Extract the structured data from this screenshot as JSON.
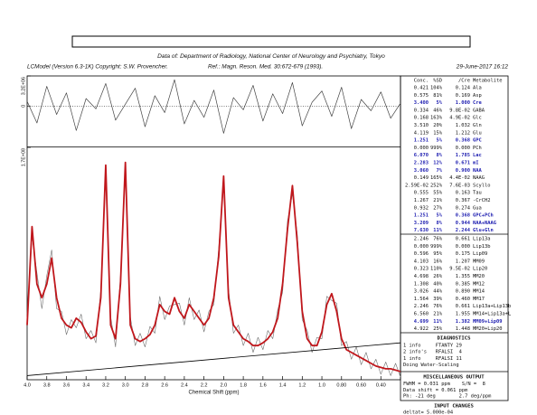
{
  "header": {
    "data_of": "Data of: Department of Radiology, National Center of Neurology and Psychiatry, Tokyo",
    "program": "LCModel (Version 6.3-1K) Copyright: S.W. Provencher.",
    "reference": "Ref.: Magn. Reson. Med. 30:672-679 (1993).",
    "date": "29-June-2017  16:12"
  },
  "chart_data": [
    {
      "type": "line",
      "xlim": [
        4.0,
        0.2
      ],
      "ylim": [
        -4300000.0,
        3200000.0
      ],
      "yticks": [
        {
          "value": 3200000.0,
          "label": "3.2E+06"
        },
        0
      ],
      "series": [
        {
          "name": "Residuals",
          "color": "#444444",
          "x": [
            4,
            3.9,
            3.8,
            3.7,
            3.6,
            3.5,
            3.4,
            3.3,
            3.2,
            3.1,
            3,
            2.9,
            2.8,
            2.7,
            2.6,
            2.5,
            2.4,
            2.3,
            2.2,
            2.1,
            2,
            1.9,
            1.8,
            1.7,
            1.6,
            1.5,
            1.4,
            1.3,
            1.2,
            1.1,
            1,
            0.9,
            0.8,
            0.7,
            0.6,
            0.5,
            0.4,
            0.3,
            0.2
          ],
          "values": [
            500000.0,
            -1800000.0,
            2100000.0,
            -900000.0,
            1400000.0,
            -2600000.0,
            800000.0,
            -300000.0,
            2400000.0,
            -1500000.0,
            200000.0,
            1900000.0,
            -2200000.0,
            1100000.0,
            -700000.0,
            2800000.0,
            -1900000.0,
            600000.0,
            -1200000.0,
            1700000.0,
            -2900000.0,
            900000.0,
            -400000.0,
            2200000.0,
            -1600000.0,
            1300000.0,
            -800000.0,
            2500000.0,
            -2100000.0,
            400000.0,
            1600000.0,
            -1100000.0,
            2000000.0,
            -2400000.0,
            700000.0,
            -500000.0,
            1500000.0,
            -1300000.0,
            300000.0
          ]
        }
      ]
    },
    {
      "type": "line",
      "xlabel": "Chemical Shift (ppm)",
      "xlim": [
        4.0,
        0.2
      ],
      "xticks": [
        {
          "value": 4,
          "label": "4.0"
        },
        3.8,
        3.6,
        3.4,
        3.2,
        {
          "value": 3,
          "label": "3.0"
        },
        2.8,
        2.6,
        2.4,
        2.2,
        {
          "value": 2,
          "label": "2.0"
        },
        1.8,
        1.6,
        1.4,
        1.2,
        {
          "value": 1,
          "label": "1.0"
        },
        {
          "value": 0.8,
          "label": "0.80"
        },
        {
          "value": 0.6,
          "label": "0.60"
        },
        {
          "value": 0.4,
          "label": "0.40"
        }
      ],
      "ylim": [
        0,
        170000000.0
      ],
      "yticks": [
        {
          "value": 170000000.0,
          "label": "1.7E+08"
        }
      ],
      "x": [
        4,
        3.95,
        3.9,
        3.85,
        3.8,
        3.75,
        3.7,
        3.65,
        3.6,
        3.55,
        3.5,
        3.45,
        3.4,
        3.35,
        3.3,
        3.25,
        3.2,
        3.15,
        3.1,
        3.05,
        3,
        2.95,
        2.9,
        2.85,
        2.8,
        2.75,
        2.7,
        2.65,
        2.6,
        2.55,
        2.5,
        2.45,
        2.4,
        2.35,
        2.3,
        2.25,
        2.2,
        2.15,
        2.1,
        2.05,
        2,
        1.95,
        1.9,
        1.85,
        1.8,
        1.75,
        1.7,
        1.65,
        1.6,
        1.55,
        1.5,
        1.45,
        1.4,
        1.35,
        1.3,
        1.25,
        1.2,
        1.15,
        1.1,
        1.05,
        1,
        0.95,
        0.9,
        0.85,
        0.8,
        0.75,
        0.7,
        0.65,
        0.6,
        0.55,
        0.5,
        0.45,
        0.4,
        0.35,
        0.3,
        0.25,
        0.2
      ],
      "series": [
        {
          "name": "Data",
          "color": "#6e6e6e",
          "width": 0.6,
          "values": [
            48000000.0,
            105000000.0,
            78000000.0,
            52000000.0,
            76000000.0,
            95000000.0,
            52000000.0,
            50000000.0,
            33000000.0,
            44000000.0,
            38000000.0,
            48000000.0,
            30000000.0,
            36000000.0,
            27000000.0,
            66000000.0,
            150000000.0,
            46000000.0,
            24000000.0,
            76000000.0,
            152000000.0,
            46000000.0,
            25000000.0,
            34000000.0,
            24000000.0,
            39000000.0,
            34000000.0,
            61000000.0,
            44000000.0,
            54000000.0,
            55000000.0,
            56000000.0,
            40000000.0,
            60000000.0,
            44000000.0,
            51000000.0,
            35000000.0,
            50000000.0,
            55000000.0,
            96000000.0,
            143000000.0,
            66000000.0,
            34000000.0,
            40000000.0,
            25000000.0,
            34000000.0,
            20000000.0,
            31000000.0,
            22000000.0,
            36000000.0,
            30000000.0,
            51000000.0,
            64000000.0,
            116000000.0,
            136000000.0,
            106000000.0,
            44000000.0,
            36000000.0,
            20000000.0,
            31000000.0,
            30000000.0,
            61000000.0,
            58000000.0,
            56000000.0,
            25000000.0,
            28000000.0,
            15000000.0,
            24000000.0,
            11000000.0,
            20000000.0,
            8000000.0,
            15000000.0,
            4000000.0,
            13000000.0,
            3000000.0,
            12000000.0,
            2000000.0
          ]
        },
        {
          "name": "Fit",
          "color": "#c0171c",
          "width": 1.8,
          "values": [
            40000000.0,
            112000000.0,
            70000000.0,
            60000000.0,
            70000000.0,
            89000000.0,
            60000000.0,
            45000000.0,
            40000000.0,
            38000000.0,
            45000000.0,
            42000000.0,
            35000000.0,
            30000000.0,
            32000000.0,
            60000000.0,
            157000000.0,
            40000000.0,
            30000000.0,
            70000000.0,
            159000000.0,
            40000000.0,
            30000000.0,
            28000000.0,
            30000000.0,
            33000000.0,
            40000000.0,
            55000000.0,
            50000000.0,
            48000000.0,
            60000000.0,
            50000000.0,
            45000000.0,
            55000000.0,
            50000000.0,
            45000000.0,
            40000000.0,
            45000000.0,
            60000000.0,
            90000000.0,
            149000000.0,
            60000000.0,
            40000000.0,
            35000000.0,
            30000000.0,
            28000000.0,
            25000000.0,
            25000000.0,
            27000000.0,
            30000000.0,
            35000000.0,
            45000000.0,
            70000000.0,
            110000000.0,
            142000000.0,
            100000000.0,
            50000000.0,
            30000000.0,
            25000000.0,
            25000000.0,
            35000000.0,
            55000000.0,
            63000000.0,
            50000000.0,
            30000000.0,
            22000000.0,
            20000000.0,
            18000000.0,
            16000000.0,
            14000000.0,
            12000000.0,
            10000000.0,
            9000000.0,
            8000000.0,
            8000000.0,
            7000000.0,
            6000000.0
          ]
        },
        {
          "name": "Baseline",
          "color": "#000000",
          "width": 0.8,
          "x": [
            4.0,
            0.2
          ],
          "values": [
            3000000.0,
            27000000.0
          ]
        }
      ]
    }
  ],
  "table": {
    "header": [
      "Conc.",
      "%SD",
      "/Cre",
      "Metabolite"
    ],
    "highlight_color": "#1c1cb0",
    "rows": [
      {
        "cells": [
          "0.421",
          "104%",
          "0.124",
          "Ala"
        ]
      },
      {
        "cells": [
          "0.575",
          "81%",
          "0.169",
          "Asp"
        ]
      },
      {
        "cells": [
          "3.400",
          "5%",
          "1.000",
          "Cre"
        ],
        "highlight": true
      },
      {
        "cells": [
          "0.334",
          "46%",
          "9.8E-02",
          "GABA"
        ]
      },
      {
        "cells": [
          "0.168",
          "163%",
          "4.9E-02",
          "Glc"
        ]
      },
      {
        "cells": [
          "3.510",
          "20%",
          "1.032",
          "Gln"
        ]
      },
      {
        "cells": [
          "4.119",
          "15%",
          "1.212",
          "Glu"
        ]
      },
      {
        "cells": [
          "1.251",
          "5%",
          "0.368",
          "GPC"
        ],
        "highlight": true
      },
      {
        "cells": [
          "0.000",
          "999%",
          "0.000",
          "PCh"
        ]
      },
      {
        "cells": [
          "6.070",
          "8%",
          "1.785",
          "Lac"
        ],
        "highlight": true
      },
      {
        "cells": [
          "2.283",
          "12%",
          "0.671",
          "mI"
        ],
        "highlight": true
      },
      {
        "cells": [
          "3.060",
          "7%",
          "0.900",
          "NAA"
        ],
        "highlight": true
      },
      {
        "cells": [
          "0.149",
          "165%",
          "4.4E-02",
          "NAAG"
        ]
      },
      {
        "cells": [
          "2.59E-02",
          "252%",
          "7.6E-03",
          "Scyllo"
        ]
      },
      {
        "cells": [
          "0.555",
          "55%",
          "0.163",
          "Tau"
        ]
      },
      {
        "cells": [
          "1.267",
          "21%",
          "0.367",
          "-CrCH2"
        ]
      },
      {
        "cells": [
          "0.932",
          "27%",
          "0.274",
          "Gua"
        ]
      },
      {
        "cells": [
          "1.251",
          "5%",
          "0.368",
          "GPC+PCh"
        ],
        "highlight": true
      },
      {
        "cells": [
          "3.209",
          "8%",
          "0.944",
          "NAA+NAAG"
        ],
        "highlight": true
      },
      {
        "cells": [
          "7.630",
          "11%",
          "2.244",
          "Glu+Gln"
        ],
        "highlight": true
      }
    ],
    "rows2": [
      {
        "cells": [
          "2.246",
          "76%",
          "0.661",
          "Lip13a"
        ]
      },
      {
        "cells": [
          "0.000",
          "999%",
          "0.000",
          "Lip13b"
        ]
      },
      {
        "cells": [
          "0.596",
          "95%",
          "0.175",
          "Lip09"
        ]
      },
      {
        "cells": [
          "4.103",
          "16%",
          "1.207",
          "MM09"
        ]
      },
      {
        "cells": [
          "0.323",
          "110%",
          "9.5E-02",
          "Lip20"
        ]
      },
      {
        "cells": [
          "4.698",
          "26%",
          "1.355",
          "MM20"
        ]
      },
      {
        "cells": [
          "1.308",
          "40%",
          "0.385",
          "MM12"
        ]
      },
      {
        "cells": [
          "3.026",
          "44%",
          "0.890",
          "MM14"
        ]
      },
      {
        "cells": [
          "1.564",
          "39%",
          "0.460",
          "MM17"
        ]
      },
      {
        "cells": [
          "2.246",
          "76%",
          "0.661",
          "Lip13a+Lip13b"
        ]
      },
      {
        "cells": [
          "6.560",
          "21%",
          "1.955",
          "MM14+Lip13a+L"
        ]
      },
      {
        "cells": [
          "4.699",
          "11%",
          "1.382",
          "MM09+Lip09"
        ],
        "highlight": true
      },
      {
        "cells": [
          "4.922",
          "25%",
          "1.448",
          "MM20+Lip20"
        ]
      }
    ]
  },
  "diagnostics": {
    "title": "DIAGNOSTICS",
    "lines": [
      "1 info     FTANTY 29",
      "2 info's   RFALSI  4",
      "1 info     RFALSI 11",
      "Doing Water-Scaling"
    ]
  },
  "misc": {
    "title": "MISCELLANEOUS OUTPUT",
    "lines": [
      "FWHM = 0.031 ppm    S/N =  8",
      "Data shift = 0.061 ppm",
      "Ph: -21 deg        2.7 deg/ppm"
    ]
  },
  "input_changes": {
    "title": "INPUT CHANGES",
    "lines": [
      "deltat= 5.000e-04"
    ]
  }
}
